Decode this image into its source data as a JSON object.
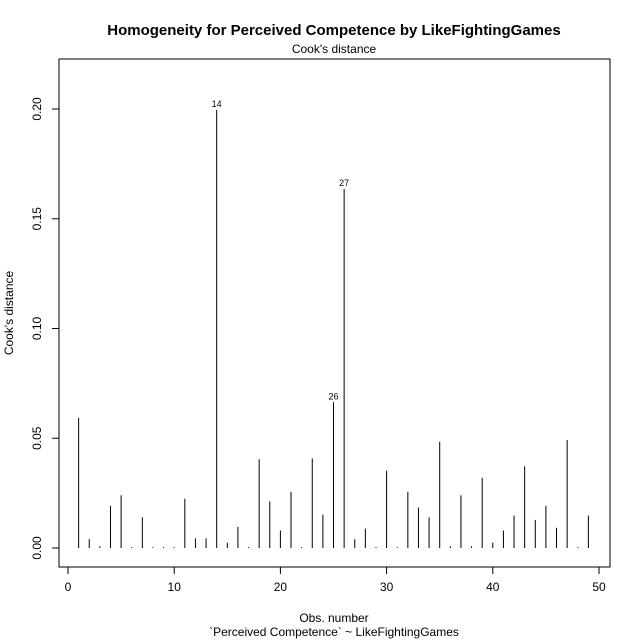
{
  "chart_data": {
    "type": "bar",
    "title": "Homogeneity for Perceived Competence by LikeFightingGames",
    "subtitle": "Cook's distance",
    "xlabel": "Obs. number",
    "xlabel_sub": "`Perceived Competence` ~ LikeFightingGames",
    "ylabel": "Cook's distance",
    "xlim": [
      0,
      50
    ],
    "ylim": [
      0,
      0.2
    ],
    "xticks": [
      "0",
      "10",
      "20",
      "30",
      "40",
      "50"
    ],
    "yticks": [
      "0.00",
      "0.05",
      "0.10",
      "0.15",
      "0.20"
    ],
    "x": [
      1,
      2,
      3,
      4,
      5,
      6,
      7,
      8,
      9,
      10,
      11,
      12,
      13,
      14,
      15,
      16,
      17,
      18,
      19,
      20,
      21,
      22,
      23,
      24,
      25,
      26,
      27,
      28,
      29,
      30,
      31,
      32,
      33,
      34,
      35,
      36,
      37,
      38,
      39,
      40,
      41,
      42,
      43,
      44,
      45,
      46,
      47,
      48,
      49
    ],
    "values": [
      0.0592,
      0.004,
      0.0008,
      0.0192,
      0.024,
      0.0004,
      0.014,
      0.0004,
      0.0004,
      0.0004,
      0.0224,
      0.0044,
      0.0044,
      0.1996,
      0.0024,
      0.0096,
      0.0004,
      0.0404,
      0.0212,
      0.008,
      0.0256,
      0.0004,
      0.0408,
      0.0152,
      0.0664,
      0.1636,
      0.004,
      0.0088,
      0.0004,
      0.0352,
      0.0004,
      0.0256,
      0.0184,
      0.014,
      0.0484,
      0.0008,
      0.024,
      0.0008,
      0.032,
      0.0024,
      0.008,
      0.0148,
      0.0372,
      0.0128,
      0.0192,
      0.0092,
      0.0492,
      0.0004,
      0.0148
    ],
    "labeled_points": [
      {
        "x": 14,
        "label": "14"
      },
      {
        "x": 25,
        "label": "26"
      },
      {
        "x": 26,
        "label": "27"
      }
    ],
    "color": "#000000"
  }
}
